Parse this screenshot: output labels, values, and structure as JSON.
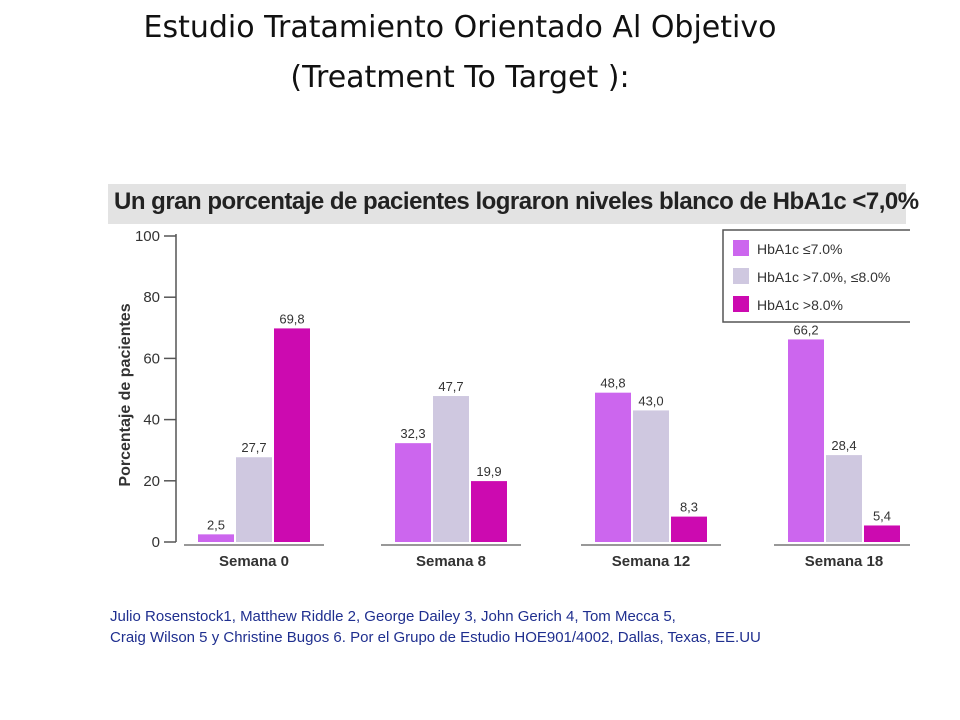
{
  "slide": {
    "title_line1": "Estudio Tratamiento Orientado Al Objetivo",
    "title_line2": "(Treatment To Target ):",
    "footer_line1": "Julio Rosenstock1, Matthew Riddle 2, George Dailey 3, John Gerich 4, Tom Mecca 5,",
    "footer_line2": "Craig Wilson 5 y Christine Bugos 6. Por el Grupo de Estudio HOE901/4002, Dallas, Texas, EE.UU"
  },
  "chart_data": {
    "type": "bar",
    "title": "Un gran porcentaje de pacientes lograron niveles blanco de HbA1c <7,0%",
    "ylabel": "Porcentaje de pacientes",
    "xlabel": "",
    "ylim": [
      0,
      100
    ],
    "yticks": [
      "0",
      "20",
      "40",
      "60",
      "80",
      "100"
    ],
    "categories": [
      "Semana 0",
      "Semana 8",
      "Semana 12",
      "Semana 18"
    ],
    "series": [
      {
        "name": "HbA1c ≤7.0%",
        "color": "#cc66ee",
        "values": [
          2.5,
          32.3,
          48.8,
          66.2
        ],
        "labels": [
          "2,5",
          "32,3",
          "48,8",
          "66,2"
        ]
      },
      {
        "name": "HbA1c >7.0%, ≤8.0%",
        "color": "#cfc8e0",
        "values": [
          27.7,
          47.7,
          43.0,
          28.4
        ],
        "labels": [
          "27,7",
          "47,7",
          "43,0",
          "28,4"
        ]
      },
      {
        "name": "HbA1c >8.0%",
        "color": "#cc0ab0",
        "values": [
          69.8,
          19.9,
          8.3,
          5.4
        ],
        "labels": [
          "69,8",
          "19,9",
          "8,3",
          "5,4"
        ]
      }
    ],
    "legend_position": "top-right",
    "grid": false
  }
}
